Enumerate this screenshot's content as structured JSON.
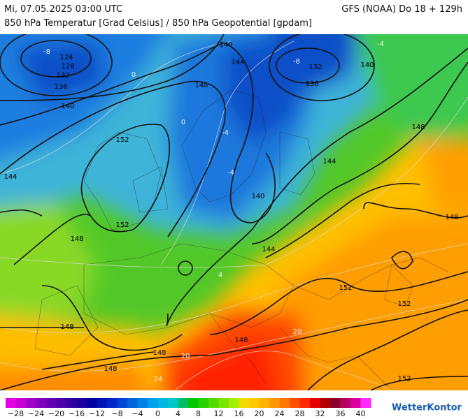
{
  "header": {
    "datetime": "Mi, 07.05.2025 03:00 UTC",
    "model": "GFS (NOAA) Do 18 + 129h",
    "subtitle": "850 hPa Temperatur [Grad Celsius] / 850 hPa Geopotential [gpdam]"
  },
  "map": {
    "geopotential_labels": [
      "124",
      "128",
      "132",
      "136",
      "140",
      "140",
      "144",
      "148",
      "152",
      "152",
      "144",
      "140",
      "132",
      "136",
      "148",
      "144",
      "140",
      "148",
      "148",
      "144",
      "152",
      "152",
      "148",
      "148",
      "148",
      "148",
      "152"
    ],
    "temperature_labels": [
      "-8",
      "0",
      "-4",
      "-8",
      "-4",
      "0",
      "4",
      "20",
      "20",
      "24",
      "-4"
    ]
  },
  "legend": {
    "colors": [
      "#e600e6",
      "#c800d2",
      "#a000c8",
      "#8200be",
      "#6400b4",
      "#4b00aa",
      "#3200a0",
      "#1e00a0",
      "#0000a0",
      "#0014b4",
      "#0028c8",
      "#0046d2",
      "#0064dc",
      "#0082e6",
      "#00a0f0",
      "#00b4e6",
      "#00c8c8",
      "#00be64",
      "#00c800",
      "#28d200",
      "#50dc00",
      "#78e600",
      "#a0f000",
      "#f0dc00",
      "#ffc800",
      "#ffb400",
      "#ff9600",
      "#ff7800",
      "#ff5000",
      "#ff2800",
      "#e60000",
      "#b40000",
      "#8c0028",
      "#b40064",
      "#dc00a0",
      "#ff28ff"
    ],
    "labels": [
      "−28",
      "−24",
      "−20",
      "−16",
      "−12",
      "−8",
      "−4",
      "0",
      "4",
      "8",
      "12",
      "16",
      "20",
      "24",
      "28",
      "32",
      "36",
      "40"
    ]
  },
  "brand": "WetterKontor"
}
